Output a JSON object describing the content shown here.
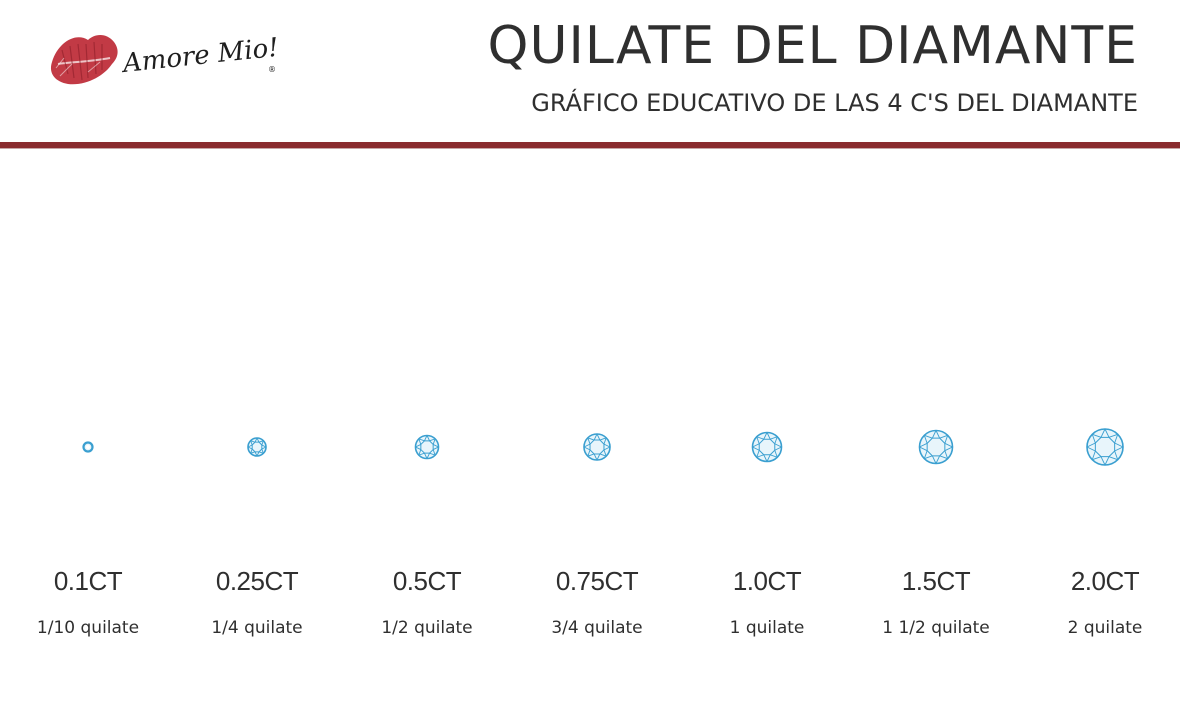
{
  "header": {
    "brand": "Amore Mio!",
    "brand_mark": "®",
    "title": "QUILATE DEL DIAMANTE",
    "subtitle": "GRÁFICO EDUCATIVO DE LAS 4 C'S DEL DIAMANTE"
  },
  "colors": {
    "rule": "#8a2b2e",
    "diamond": "#3a9fd0",
    "lips": "#c23a45",
    "text": "#2f2f2f"
  },
  "diamonds": [
    {
      "label": "0.1CT",
      "description": "1/10 quilate",
      "carat": 0.1,
      "icon": "round-diamond-icon"
    },
    {
      "label": "0.25CT",
      "description": "1/4 quilate",
      "carat": 0.25,
      "icon": "round-diamond-icon"
    },
    {
      "label": "0.5CT",
      "description": "1/2 quilate",
      "carat": 0.5,
      "icon": "round-diamond-icon"
    },
    {
      "label": "0.75CT",
      "description": "3/4 quilate",
      "carat": 0.75,
      "icon": "round-diamond-icon"
    },
    {
      "label": "1.0CT",
      "description": "1 quilate",
      "carat": 1.0,
      "icon": "round-diamond-icon"
    },
    {
      "label": "1.5CT",
      "description": "1 1/2 quilate",
      "carat": 1.5,
      "icon": "round-diamond-icon"
    },
    {
      "label": "2.0CT",
      "description": "2 quilate",
      "carat": 2.0,
      "icon": "round-diamond-icon"
    }
  ]
}
